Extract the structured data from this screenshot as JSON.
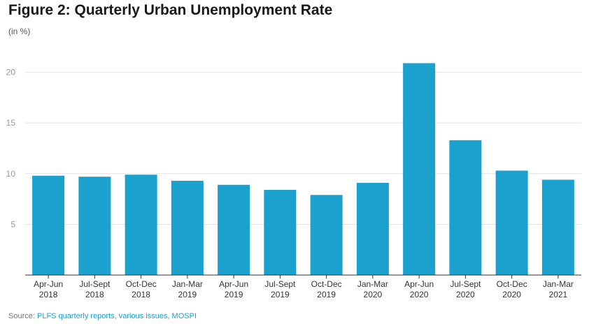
{
  "title": "Figure 2: Quarterly Urban Unemployment Rate",
  "subtitle": "(in %)",
  "source": {
    "label": "Source:",
    "text": "PLFS quarterly reports, various issues, MOSPI"
  },
  "colors": {
    "bar": "#1ba1cd",
    "grid": "#e2e2e2",
    "axis": "#333333",
    "tick_text": "#999999",
    "category_text": "#333333",
    "source_link": "#1a9fd0"
  },
  "chart_data": {
    "type": "bar",
    "categories": [
      [
        "Apr-Jun",
        "2018"
      ],
      [
        "Jul-Sept",
        "2018"
      ],
      [
        "Oct-Dec",
        "2018"
      ],
      [
        "Jan-Mar",
        "2019"
      ],
      [
        "Apr-Jun",
        "2019"
      ],
      [
        "Jul-Sept",
        "2019"
      ],
      [
        "Oct-Dec",
        "2019"
      ],
      [
        "Jan-Mar",
        "2020"
      ],
      [
        "Apr-Jun",
        "2020"
      ],
      [
        "Jul-Sept",
        "2020"
      ],
      [
        "Oct-Dec",
        "2020"
      ],
      [
        "Jan-Mar",
        "2021"
      ]
    ],
    "values": [
      9.8,
      9.7,
      9.9,
      9.3,
      8.9,
      8.4,
      7.9,
      9.1,
      20.9,
      13.3,
      10.3,
      9.4
    ],
    "ylim": [
      0,
      23
    ],
    "yticks": [
      5,
      10,
      15,
      20
    ],
    "grid": true,
    "legend": "none"
  }
}
